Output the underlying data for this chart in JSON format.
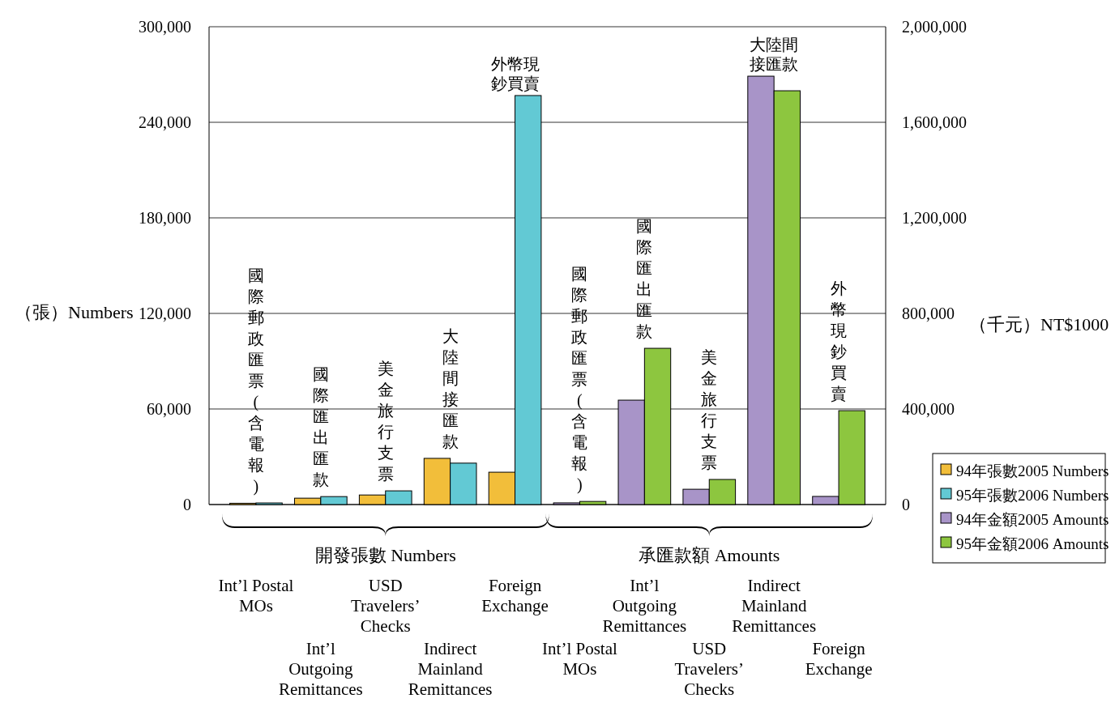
{
  "chart_data": {
    "type": "bar",
    "categories": [
      "國際郵政匯票(含電報)",
      "國際匯出匯款",
      "美金旅行支票",
      "大陸間接匯款",
      "外幣現鈔買賣",
      "國際郵政匯票(含電報)",
      "國際匯出匯款",
      "美金旅行支票",
      "大陸間接匯款",
      "外幣現鈔買賣"
    ],
    "series": [
      {
        "name": "94年張數2005 Numbers",
        "color": "#f2be3a",
        "values": [
          800,
          4000,
          6000,
          29000,
          20300,
          null,
          null,
          null,
          null,
          null
        ]
      },
      {
        "name": "95年張數2006 Numbers",
        "color": "#62c9d4",
        "values": [
          1000,
          5000,
          8600,
          26000,
          256800,
          null,
          null,
          null,
          null,
          null
        ]
      },
      {
        "name": "94年金額2005 Amounts",
        "color": "#a894c8",
        "axis": "y2",
        "values": [
          null,
          null,
          null,
          null,
          null,
          7000,
          437000,
          64000,
          1793000,
          34000
        ]
      },
      {
        "name": "95年金額2006 Amounts",
        "color": "#8dc63f",
        "axis": "y2",
        "values": [
          null,
          null,
          null,
          null,
          null,
          13000,
          654000,
          105000,
          1732000,
          393000
        ]
      }
    ],
    "ylabel": "（張）Numbers",
    "y2label": "（千元）NT$1000",
    "ylim": [
      0,
      300000
    ],
    "yticks": [
      {
        "value": 0,
        "label": "0"
      },
      {
        "value": 60000,
        "label": "60,000"
      },
      {
        "value": 120000,
        "label": "120,000"
      },
      {
        "value": 180000,
        "label": "180,000"
      },
      {
        "value": 240000,
        "label": "240,000"
      },
      {
        "value": 300000,
        "label": "300,000"
      }
    ],
    "y2lim": [
      0,
      2000000
    ],
    "y2ticks": [
      {
        "value": 0,
        "label": "0"
      },
      {
        "value": 400000,
        "label": "400,000"
      },
      {
        "value": 800000,
        "label": "800,000"
      },
      {
        "value": 1200000,
        "label": "1,200,000"
      },
      {
        "value": 1600000,
        "label": "1,600,000"
      },
      {
        "value": 2000000,
        "label": "2,000,000"
      }
    ],
    "grid": "y",
    "legend": "right",
    "annotations": [
      "開發張數 Numbers",
      "承匯款額 Amounts",
      "Int’l Postal MOs",
      "Int’l Outgoing Remittances",
      "USD Travelers’ Checks",
      "Indirect Mainland Remittances",
      "Foreign Exchange",
      "Int’l Postal MOs",
      "Int’l Outgoing Remittances",
      "USD Travelers’ Checks",
      "Indirect Mainland Remittances",
      "Foreign Exchange"
    ]
  }
}
